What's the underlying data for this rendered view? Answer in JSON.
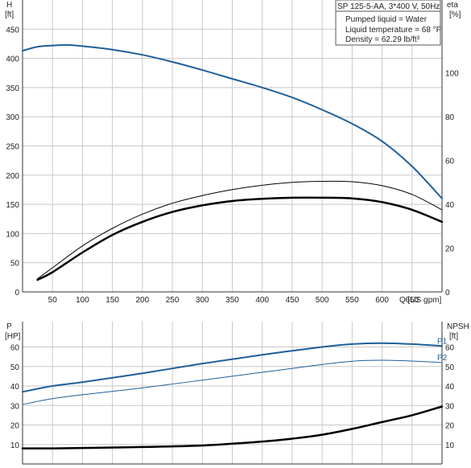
{
  "chart_data": [
    {
      "type": "line",
      "panel": "head-efficiency",
      "info": {
        "title": "SP 125-5-AA, 3*400 V, 50Hz",
        "lines": [
          "Pumped liquid = Water",
          "Liquid temperature = 68 °F",
          "Density = 62.29 lb/ft³"
        ]
      },
      "xlabel": "Q [US gpm]",
      "xlim": [
        0,
        700
      ],
      "x_ticks": [
        "50",
        "100",
        "150",
        "200",
        "250",
        "300",
        "350",
        "400",
        "450",
        "500",
        "550",
        "600",
        "650"
      ],
      "y_left": {
        "label_top": "H",
        "label_unit": "[ft]",
        "lim": [
          0,
          500
        ],
        "ticks": [
          "0",
          "50",
          "100",
          "150",
          "200",
          "250",
          "300",
          "350",
          "400",
          "450"
        ]
      },
      "y_right": {
        "label_top": "eta",
        "label_unit": "[%]",
        "lim": [
          0,
          133.3
        ],
        "ticks": [
          "0",
          "20",
          "40",
          "60",
          "80",
          "100"
        ]
      },
      "grid": true,
      "series": [
        {
          "axis": "left",
          "color": "#1f5f9a",
          "width": 2,
          "x": [
            0,
            25,
            50,
            75,
            100,
            150,
            200,
            250,
            300,
            350,
            400,
            450,
            500,
            550,
            600,
            650,
            700
          ],
          "y": [
            413,
            420,
            422,
            423,
            421,
            415,
            406,
            394,
            380,
            365,
            350,
            333,
            312,
            288,
            258,
            215,
            160
          ]
        },
        {
          "axis": "right",
          "color": "#000000",
          "width": 1,
          "x": [
            25,
            50,
            100,
            150,
            200,
            250,
            300,
            350,
            400,
            450,
            500,
            550,
            600,
            650,
            700
          ],
          "y": [
            6,
            11,
            21,
            29,
            35.5,
            40.5,
            44,
            46.7,
            48.7,
            50,
            50.5,
            50.3,
            48.5,
            44.5,
            37.5
          ]
        },
        {
          "axis": "right",
          "color": "#000000",
          "width": 2.5,
          "x": [
            25,
            50,
            100,
            150,
            200,
            250,
            300,
            350,
            400,
            450,
            500,
            550,
            600,
            650,
            700
          ],
          "y": [
            5.5,
            9,
            18,
            26,
            32,
            36.5,
            39.5,
            41.5,
            42.5,
            43,
            43,
            42.7,
            41,
            37.5,
            32
          ]
        }
      ]
    },
    {
      "type": "line",
      "panel": "power-npsh",
      "xlim": [
        0,
        700
      ],
      "y_left": {
        "label_top": "P",
        "label_unit": "[HP]",
        "lim": [
          0,
          73
        ],
        "ticks": [
          "10",
          "20",
          "30",
          "40",
          "50",
          "60"
        ]
      },
      "y_right": {
        "label_top": "NPSH",
        "label_unit": "[ft]",
        "lim": [
          0,
          73
        ],
        "ticks": [
          "10",
          "20",
          "30",
          "40",
          "50",
          "60"
        ]
      },
      "grid": true,
      "series": [
        {
          "name": "P1",
          "axis": "left",
          "color": "#1f5f9a",
          "width": 2,
          "x": [
            0,
            50,
            100,
            200,
            300,
            400,
            500,
            550,
            600,
            650,
            700
          ],
          "y": [
            37,
            40,
            42,
            46.5,
            51.5,
            56,
            60,
            61.5,
            62,
            61.5,
            60.5
          ]
        },
        {
          "name": "P2",
          "axis": "left",
          "color": "#1f5f9a",
          "width": 1,
          "x": [
            0,
            50,
            100,
            200,
            300,
            400,
            500,
            550,
            600,
            650,
            700
          ],
          "y": [
            30.5,
            33.5,
            35.5,
            39,
            43,
            47,
            51,
            52.7,
            53.2,
            52.8,
            52
          ]
        },
        {
          "axis": "right",
          "color": "#000000",
          "width": 2.5,
          "x": [
            0,
            50,
            100,
            200,
            300,
            400,
            450,
            500,
            550,
            600,
            650,
            700
          ],
          "y": [
            8,
            8,
            8.2,
            8.7,
            9.5,
            11.5,
            13,
            15,
            18,
            21.5,
            25,
            29.5
          ]
        }
      ]
    }
  ]
}
